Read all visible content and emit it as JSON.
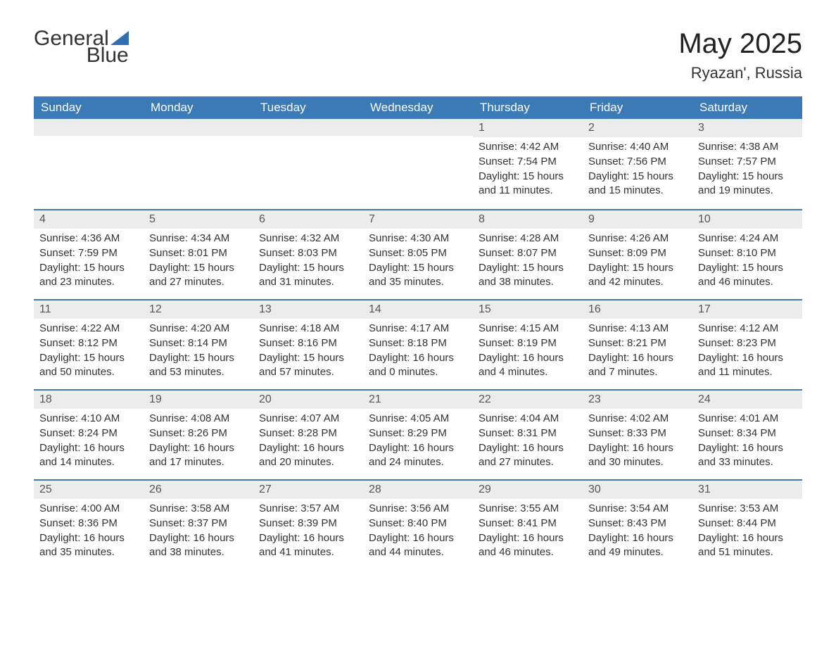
{
  "logo": {
    "word1": "General",
    "word2": "Blue"
  },
  "title": "May 2025",
  "location": "Ryazan', Russia",
  "colors": {
    "header_bg": "#3b79b7",
    "header_text": "#ffffff",
    "daynum_bg": "#ececec",
    "row_divider": "#3b79b7",
    "body_text": "#333333",
    "logo_blue": "#2f6fb0"
  },
  "weekdays": [
    "Sunday",
    "Monday",
    "Tuesday",
    "Wednesday",
    "Thursday",
    "Friday",
    "Saturday"
  ],
  "first_weekday_index": 4,
  "days": [
    {
      "n": 1,
      "sunrise": "4:42 AM",
      "sunset": "7:54 PM",
      "dl_h": 15,
      "dl_m": 11
    },
    {
      "n": 2,
      "sunrise": "4:40 AM",
      "sunset": "7:56 PM",
      "dl_h": 15,
      "dl_m": 15
    },
    {
      "n": 3,
      "sunrise": "4:38 AM",
      "sunset": "7:57 PM",
      "dl_h": 15,
      "dl_m": 19
    },
    {
      "n": 4,
      "sunrise": "4:36 AM",
      "sunset": "7:59 PM",
      "dl_h": 15,
      "dl_m": 23
    },
    {
      "n": 5,
      "sunrise": "4:34 AM",
      "sunset": "8:01 PM",
      "dl_h": 15,
      "dl_m": 27
    },
    {
      "n": 6,
      "sunrise": "4:32 AM",
      "sunset": "8:03 PM",
      "dl_h": 15,
      "dl_m": 31
    },
    {
      "n": 7,
      "sunrise": "4:30 AM",
      "sunset": "8:05 PM",
      "dl_h": 15,
      "dl_m": 35
    },
    {
      "n": 8,
      "sunrise": "4:28 AM",
      "sunset": "8:07 PM",
      "dl_h": 15,
      "dl_m": 38
    },
    {
      "n": 9,
      "sunrise": "4:26 AM",
      "sunset": "8:09 PM",
      "dl_h": 15,
      "dl_m": 42
    },
    {
      "n": 10,
      "sunrise": "4:24 AM",
      "sunset": "8:10 PM",
      "dl_h": 15,
      "dl_m": 46
    },
    {
      "n": 11,
      "sunrise": "4:22 AM",
      "sunset": "8:12 PM",
      "dl_h": 15,
      "dl_m": 50
    },
    {
      "n": 12,
      "sunrise": "4:20 AM",
      "sunset": "8:14 PM",
      "dl_h": 15,
      "dl_m": 53
    },
    {
      "n": 13,
      "sunrise": "4:18 AM",
      "sunset": "8:16 PM",
      "dl_h": 15,
      "dl_m": 57
    },
    {
      "n": 14,
      "sunrise": "4:17 AM",
      "sunset": "8:18 PM",
      "dl_h": 16,
      "dl_m": 0
    },
    {
      "n": 15,
      "sunrise": "4:15 AM",
      "sunset": "8:19 PM",
      "dl_h": 16,
      "dl_m": 4
    },
    {
      "n": 16,
      "sunrise": "4:13 AM",
      "sunset": "8:21 PM",
      "dl_h": 16,
      "dl_m": 7
    },
    {
      "n": 17,
      "sunrise": "4:12 AM",
      "sunset": "8:23 PM",
      "dl_h": 16,
      "dl_m": 11
    },
    {
      "n": 18,
      "sunrise": "4:10 AM",
      "sunset": "8:24 PM",
      "dl_h": 16,
      "dl_m": 14
    },
    {
      "n": 19,
      "sunrise": "4:08 AM",
      "sunset": "8:26 PM",
      "dl_h": 16,
      "dl_m": 17
    },
    {
      "n": 20,
      "sunrise": "4:07 AM",
      "sunset": "8:28 PM",
      "dl_h": 16,
      "dl_m": 20
    },
    {
      "n": 21,
      "sunrise": "4:05 AM",
      "sunset": "8:29 PM",
      "dl_h": 16,
      "dl_m": 24
    },
    {
      "n": 22,
      "sunrise": "4:04 AM",
      "sunset": "8:31 PM",
      "dl_h": 16,
      "dl_m": 27
    },
    {
      "n": 23,
      "sunrise": "4:02 AM",
      "sunset": "8:33 PM",
      "dl_h": 16,
      "dl_m": 30
    },
    {
      "n": 24,
      "sunrise": "4:01 AM",
      "sunset": "8:34 PM",
      "dl_h": 16,
      "dl_m": 33
    },
    {
      "n": 25,
      "sunrise": "4:00 AM",
      "sunset": "8:36 PM",
      "dl_h": 16,
      "dl_m": 35
    },
    {
      "n": 26,
      "sunrise": "3:58 AM",
      "sunset": "8:37 PM",
      "dl_h": 16,
      "dl_m": 38
    },
    {
      "n": 27,
      "sunrise": "3:57 AM",
      "sunset": "8:39 PM",
      "dl_h": 16,
      "dl_m": 41
    },
    {
      "n": 28,
      "sunrise": "3:56 AM",
      "sunset": "8:40 PM",
      "dl_h": 16,
      "dl_m": 44
    },
    {
      "n": 29,
      "sunrise": "3:55 AM",
      "sunset": "8:41 PM",
      "dl_h": 16,
      "dl_m": 46
    },
    {
      "n": 30,
      "sunrise": "3:54 AM",
      "sunset": "8:43 PM",
      "dl_h": 16,
      "dl_m": 49
    },
    {
      "n": 31,
      "sunrise": "3:53 AM",
      "sunset": "8:44 PM",
      "dl_h": 16,
      "dl_m": 51
    }
  ],
  "labels": {
    "sunrise": "Sunrise:",
    "sunset": "Sunset:",
    "daylight_prefix": "Daylight:",
    "hours_word": "hours",
    "and_word": "and",
    "minutes_word": "minutes."
  }
}
